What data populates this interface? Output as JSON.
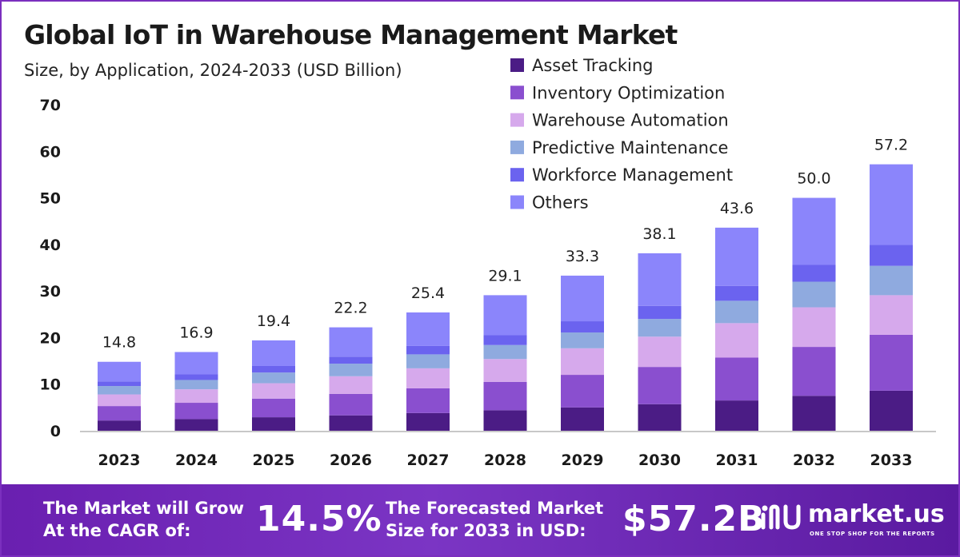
{
  "chart_data": {
    "type": "bar",
    "stacked": true,
    "title": "Global IoT in Warehouse Management Market",
    "subtitle": "Size, by Application, 2024-2033 (USD Billion)",
    "categories": [
      "2023",
      "2024",
      "2025",
      "2026",
      "2027",
      "2028",
      "2029",
      "2030",
      "2031",
      "2032",
      "2033"
    ],
    "totals": [
      "14.8",
      "16.9",
      "19.4",
      "22.2",
      "25.4",
      "29.1",
      "33.3",
      "38.1",
      "43.6",
      "50.0",
      "57.2"
    ],
    "series": [
      {
        "name": "Asset Tracking",
        "color": "#4b1c85",
        "values": [
          2.2,
          2.5,
          2.9,
          3.3,
          3.8,
          4.4,
          5.0,
          5.7,
          6.5,
          7.5,
          8.6
        ]
      },
      {
        "name": "Inventory Optimization",
        "color": "#8a4fcf",
        "values": [
          3.1,
          3.5,
          4.0,
          4.6,
          5.3,
          6.1,
          7.0,
          8.0,
          9.2,
          10.5,
          12.0
        ]
      },
      {
        "name": "Warehouse Automation",
        "color": "#d6a9ec",
        "values": [
          2.5,
          2.9,
          3.3,
          3.8,
          4.3,
          4.9,
          5.7,
          6.5,
          7.4,
          8.5,
          8.5
        ]
      },
      {
        "name": "Predictive Maintenance",
        "color": "#8faadf",
        "values": [
          1.8,
          2.0,
          2.3,
          2.7,
          3.0,
          3.0,
          3.4,
          3.8,
          4.8,
          5.5,
          6.3
        ]
      },
      {
        "name": "Workforce Management",
        "color": "#6b63ef",
        "values": [
          1.0,
          1.2,
          1.4,
          1.5,
          1.8,
          2.1,
          2.4,
          2.8,
          3.2,
          3.6,
          4.5
        ]
      },
      {
        "name": "Others",
        "color": "#8b85fb",
        "values": [
          4.2,
          4.8,
          5.5,
          6.3,
          7.2,
          8.6,
          9.8,
          11.3,
          12.5,
          14.4,
          17.3
        ]
      }
    ],
    "ylim": [
      0,
      70
    ],
    "yticks": [
      "0",
      "10",
      "20",
      "30",
      "40",
      "50",
      "60",
      "70"
    ],
    "legend_position": "top-right"
  },
  "footer": {
    "cagr_line1": "The Market will Grow",
    "cagr_line2": "At the CAGR of:",
    "cagr_value": "14.5%",
    "forecast_line1": "The Forecasted Market",
    "forecast_line2": "Size for 2033 in USD:",
    "forecast_value": "$57.2B",
    "brand_name": "market.us",
    "brand_tagline": "ONE STOP SHOP FOR THE REPORTS"
  },
  "colors": {
    "footer_bg": "#6a1fb0",
    "axis": "#b5b5b5",
    "text": "#1a1a1a"
  }
}
